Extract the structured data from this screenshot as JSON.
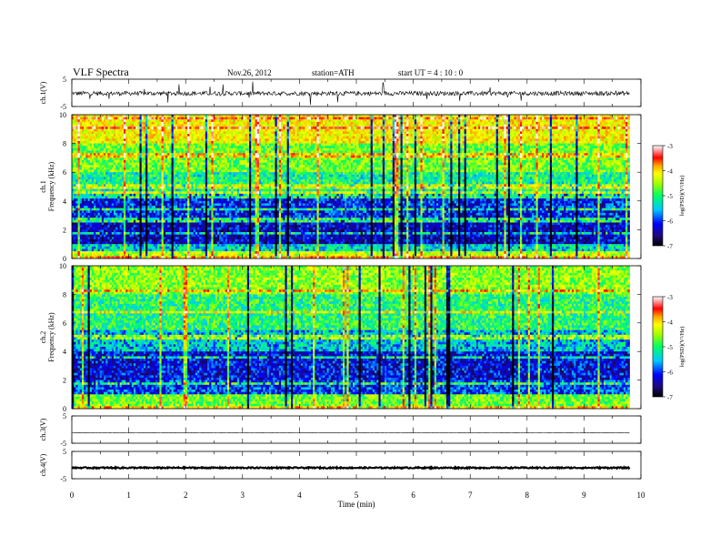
{
  "header": {
    "title": "VLF  Spectra",
    "date": "Nov.26, 2012",
    "station": "station=ATH",
    "start": "start  UT  =   4  : 10 : 0"
  },
  "colors": {
    "spectrogram_scale": [
      "#000000",
      "#1e0a78",
      "#0000ff",
      "#00c8ff",
      "#00ff66",
      "#a0ff00",
      "#ffff00",
      "#ffa500",
      "#ff0000",
      "#ffffff"
    ]
  },
  "chart_data": [
    {
      "type": "line",
      "panel": "ch1-waveform",
      "ylabel": "ch.1(V)",
      "ytick_labels": [
        "5",
        "-5"
      ],
      "ylim": [
        -5,
        5
      ],
      "xlim": [
        0,
        10
      ],
      "description_of_values": "noisy waveform centered near 0 V with occasional spikes to about +/-5 V, data ends near 9.8 min",
      "data_end": 9.8,
      "level": -0.2,
      "noise_amplitude": 0.8
    },
    {
      "type": "heatmap",
      "panel": "ch1-spectrogram",
      "ylabel_top": "ch.1",
      "ylabel": "Frequency  (kHz)",
      "ytick_labels": [
        "10",
        "8",
        "6",
        "4",
        "2",
        "0"
      ],
      "ylim": [
        0,
        10
      ],
      "xlim": [
        0,
        10
      ],
      "data_end": 9.8,
      "colorbar": {
        "label": "log(PSD)(V²/Hz)",
        "ticks": [
          "-3",
          "-4",
          "-5",
          "-6",
          "-7"
        ],
        "range": [
          -7,
          -3
        ]
      },
      "bands_khz_logpsd": [
        {
          "from": 8.0,
          "to": 10.0,
          "level": -4.3
        },
        {
          "from": 6.0,
          "to": 8.0,
          "level": -4.9
        },
        {
          "from": 4.5,
          "to": 6.0,
          "level": -5.3
        },
        {
          "from": 2.5,
          "to": 4.5,
          "level": -6.1
        },
        {
          "from": 1.0,
          "to": 2.5,
          "level": -6.3
        },
        {
          "from": 0.5,
          "to": 1.0,
          "level": -5.5
        },
        {
          "from": 0.0,
          "to": 0.5,
          "level": -4.6
        }
      ]
    },
    {
      "type": "heatmap",
      "panel": "ch2-spectrogram",
      "ylabel_top": "ch.2",
      "ylabel": "Frequency  (kHz)",
      "ytick_labels": [
        "10",
        "8",
        "6",
        "4",
        "2",
        "0"
      ],
      "ylim": [
        0,
        10
      ],
      "xlim": [
        0,
        10
      ],
      "data_end": 9.8,
      "colorbar": {
        "label": "log(PSD)(V²/Hz)",
        "ticks": [
          "-3",
          "-4",
          "-5",
          "-6",
          "-7"
        ],
        "range": [
          -7,
          -3
        ]
      },
      "bands_khz_logpsd": [
        {
          "from": 8.0,
          "to": 10.0,
          "level": -4.8
        },
        {
          "from": 5.5,
          "to": 8.0,
          "level": -5.2
        },
        {
          "from": 4.0,
          "to": 5.5,
          "level": -5.6
        },
        {
          "from": 2.0,
          "to": 4.0,
          "level": -6.2
        },
        {
          "from": 1.0,
          "to": 2.0,
          "level": -6.0
        },
        {
          "from": 0.0,
          "to": 1.0,
          "level": -4.9
        }
      ]
    },
    {
      "type": "line",
      "panel": "ch3-waveform",
      "ylabel": "ch.3(V)",
      "ytick_labels": [
        "5",
        "-5"
      ],
      "ylim": [
        -5,
        5
      ],
      "xlim": [
        0,
        10
      ],
      "data_end": 9.8,
      "level": -1.2,
      "noise_amplitude": 0.05
    },
    {
      "type": "line",
      "panel": "ch4-waveform",
      "ylabel": "ch.4(V)",
      "ytick_labels": [
        "5",
        "-5"
      ],
      "ylim": [
        -5,
        5
      ],
      "xlim": [
        0,
        10
      ],
      "data_end": 9.8,
      "level": -1.0,
      "noise_amplitude": 0.25
    }
  ],
  "x_axis": {
    "label": "Time  (min)",
    "ticks": [
      "0",
      "1",
      "2",
      "3",
      "4",
      "5",
      "6",
      "7",
      "8",
      "9",
      "10"
    ],
    "range": [
      0,
      10
    ]
  }
}
